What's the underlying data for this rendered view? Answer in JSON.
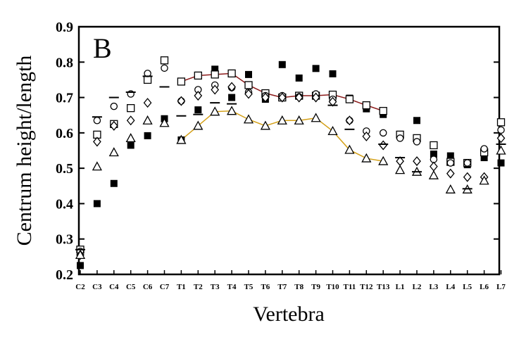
{
  "chart_data": {
    "type": "scatter",
    "panel_label": "B",
    "xlabel": "Vertebra",
    "ylabel": "Centrum height/length",
    "ylim": [
      0.2,
      0.9
    ],
    "yticks": [
      "0.2",
      "0.3",
      "0.4",
      "0.5",
      "0.6",
      "0.7",
      "0.8",
      "0.9"
    ],
    "grid": false,
    "legend": "none",
    "categories": [
      "C2",
      "C3",
      "C4",
      "C5",
      "C6",
      "C7",
      "T1",
      "T2",
      "T3",
      "T4",
      "T5",
      "T6",
      "T7",
      "T8",
      "T9",
      "T10",
      "T11",
      "T12",
      "T13",
      "L1",
      "L2",
      "L3",
      "L4",
      "L5",
      "L6",
      "L7"
    ],
    "series": [
      {
        "marker": "square-filled",
        "values": [
          0.225,
          0.4,
          0.457,
          0.565,
          0.592,
          0.64,
          0.58,
          0.665,
          0.78,
          0.7,
          0.765,
          0.695,
          0.793,
          0.755,
          0.782,
          0.767,
          0.698,
          0.668,
          0.652,
          null,
          0.635,
          0.54,
          0.535,
          0.51,
          0.53,
          0.515
        ]
      },
      {
        "marker": "square-open",
        "line_color": "#8b1a1a",
        "values": [
          0.27,
          0.595,
          0.625,
          0.67,
          0.75,
          0.805,
          0.745,
          0.762,
          0.765,
          0.768,
          0.735,
          0.712,
          0.7,
          0.705,
          0.705,
          0.708,
          0.695,
          0.678,
          0.662,
          0.595,
          0.585,
          0.565,
          0.518,
          0.515,
          0.545,
          0.63
        ]
      },
      {
        "marker": "circle-open",
        "values": [
          0.265,
          0.635,
          0.675,
          0.71,
          0.768,
          0.783,
          0.69,
          0.722,
          0.735,
          0.728,
          0.715,
          0.705,
          0.705,
          0.702,
          0.71,
          0.695,
          0.635,
          0.605,
          0.6,
          0.585,
          0.575,
          0.525,
          0.515,
          0.515,
          0.555,
          0.608
        ]
      },
      {
        "marker": "diamond-open",
        "values": [
          0.255,
          0.575,
          0.62,
          0.635,
          0.685,
          null,
          0.69,
          0.705,
          0.722,
          0.73,
          0.71,
          0.7,
          0.7,
          0.7,
          0.7,
          0.688,
          0.635,
          0.59,
          0.565,
          0.52,
          0.52,
          0.505,
          0.485,
          0.475,
          0.475,
          0.585
        ]
      },
      {
        "marker": "triangle-open",
        "line_color": "#d4a017",
        "values": [
          0.255,
          0.505,
          0.545,
          0.585,
          0.635,
          0.628,
          0.58,
          0.62,
          0.66,
          0.662,
          0.638,
          0.62,
          0.635,
          0.635,
          0.642,
          0.605,
          0.552,
          0.528,
          0.52,
          0.495,
          0.49,
          0.48,
          0.44,
          0.44,
          0.465,
          0.55
        ]
      },
      {
        "marker": "dash",
        "values": [
          0.27,
          0.645,
          0.7,
          0.715,
          0.76,
          0.73,
          0.648,
          0.652,
          0.685,
          0.682,
          null,
          null,
          null,
          null,
          null,
          0.678,
          0.61,
          null,
          0.568,
          0.53,
          0.49,
          null,
          null,
          0.442,
          null,
          0.568
        ]
      }
    ],
    "connected_ranges": [
      {
        "series": 1,
        "from": "T1",
        "to": "T13"
      },
      {
        "series": 4,
        "from": "T1",
        "to": "T13"
      }
    ]
  }
}
